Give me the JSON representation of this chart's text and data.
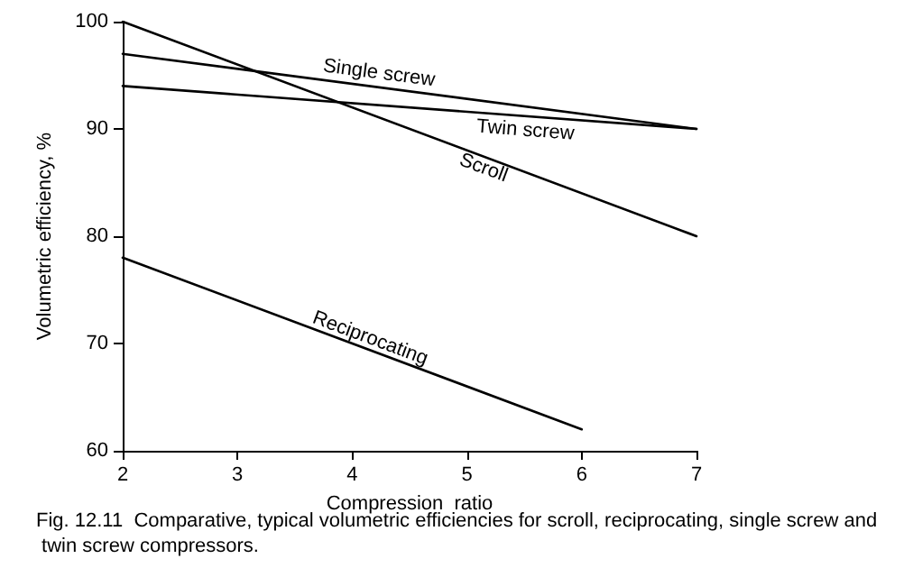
{
  "chart_data": {
    "type": "line",
    "xlabel": "Compression  ratio",
    "ylabel": "Volumetric efficiency, %",
    "x": [
      2,
      7
    ],
    "series": [
      {
        "name": "Single screw",
        "color": "#000000",
        "values": [
          97,
          90
        ]
      },
      {
        "name": "Twin screw",
        "color": "#000000",
        "values": [
          94,
          90
        ]
      },
      {
        "name": "Scroll",
        "color": "#000000",
        "values": [
          100,
          80
        ]
      },
      {
        "name": "Reciprocating",
        "color": "#000000",
        "x": [
          2,
          6
        ],
        "values": [
          78,
          62
        ]
      }
    ],
    "xlim": [
      2,
      7
    ],
    "xticks": [
      2,
      3,
      4,
      5,
      6,
      7
    ],
    "ylim": [
      60,
      100
    ],
    "yticks": [
      60,
      70,
      80,
      90,
      100
    ],
    "grid": false,
    "legend": false,
    "marker": "none",
    "line_style": "solid",
    "annotations": [
      "Fig. 12.11  Comparative, typical volumetric efficiencies for scroll, reciprocating, single screw and twin screw compressors."
    ]
  }
}
